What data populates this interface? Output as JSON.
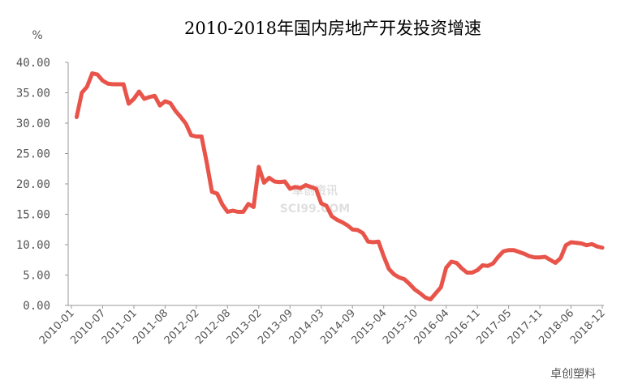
{
  "chart_data": {
    "type": "line",
    "title": "2010-2018年国内房地产开发投资增速",
    "y_unit": "%",
    "watermark": "卓创资讯",
    "watermark_sub": "SCI99.COM",
    "logo_text": "卓创塑料",
    "categories": [
      "2010-01",
      null,
      null,
      null,
      null,
      null,
      "2010-07",
      null,
      null,
      null,
      null,
      null,
      "2011-01",
      null,
      null,
      null,
      null,
      null,
      "2011-08",
      null,
      null,
      null,
      null,
      null,
      "2012-02",
      null,
      null,
      null,
      null,
      null,
      "2012-08",
      null,
      null,
      null,
      null,
      null,
      "2013-02",
      null,
      null,
      null,
      null,
      null,
      "2013-09",
      null,
      null,
      null,
      null,
      null,
      "2014-03",
      null,
      null,
      null,
      null,
      null,
      "2014-09",
      null,
      null,
      null,
      null,
      null,
      "2015-04",
      null,
      null,
      null,
      null,
      null,
      "2015-10",
      null,
      null,
      null,
      null,
      null,
      "2016-04",
      null,
      null,
      null,
      null,
      null,
      "2016-11",
      null,
      null,
      null,
      null,
      null,
      "2017-05",
      null,
      null,
      null,
      null,
      null,
      "2017-11",
      null,
      null,
      null,
      null,
      null,
      "2018-06",
      null,
      null,
      null,
      null,
      null,
      "2018-12"
    ],
    "series": [
      {
        "name": "房地产开发投资增速",
        "color": "#e8544a",
        "values": [
          null,
          31.0,
          35.0,
          36.0,
          38.2,
          38.0,
          37.0,
          36.5,
          36.4,
          36.4,
          36.4,
          33.2,
          34.0,
          35.2,
          34.0,
          34.3,
          34.5,
          32.9,
          33.6,
          33.3,
          32.0,
          31.0,
          29.9,
          28.0,
          27.8,
          27.8,
          23.5,
          18.7,
          18.4,
          16.6,
          15.4,
          15.6,
          15.4,
          15.4,
          16.7,
          16.2,
          22.8,
          20.2,
          21.0,
          20.4,
          20.3,
          20.4,
          19.2,
          19.5,
          19.3,
          19.8,
          19.5,
          19.2,
          16.8,
          16.4,
          14.7,
          14.1,
          13.7,
          13.2,
          12.5,
          12.4,
          11.9,
          10.5,
          10.4,
          10.5,
          8.1,
          6.0,
          5.1,
          4.6,
          4.3,
          3.5,
          2.6,
          2.0,
          1.3,
          1.0,
          2.0,
          3.0,
          6.2,
          7.2,
          7.0,
          6.1,
          5.4,
          5.4,
          5.8,
          6.6,
          6.5,
          6.9,
          8.0,
          8.9,
          9.1,
          9.1,
          8.8,
          8.5,
          8.1,
          7.9,
          7.9,
          8.0,
          7.5,
          7.0,
          7.8,
          9.9,
          10.4,
          10.3,
          10.2,
          9.9,
          10.1,
          9.7,
          9.5
        ]
      }
    ],
    "ylim": [
      0,
      40
    ],
    "yticks": [
      {
        "value": 0,
        "label": "0.00"
      },
      {
        "value": 5,
        "label": "5.00"
      },
      {
        "value": 10,
        "label": "10.00"
      },
      {
        "value": 15,
        "label": "15.00"
      },
      {
        "value": 20,
        "label": "20.00"
      },
      {
        "value": 25,
        "label": "25.00"
      },
      {
        "value": 30,
        "label": "30.00"
      },
      {
        "value": 35,
        "label": "35.00"
      },
      {
        "value": 40,
        "label": "40.00"
      }
    ],
    "grid": false
  }
}
